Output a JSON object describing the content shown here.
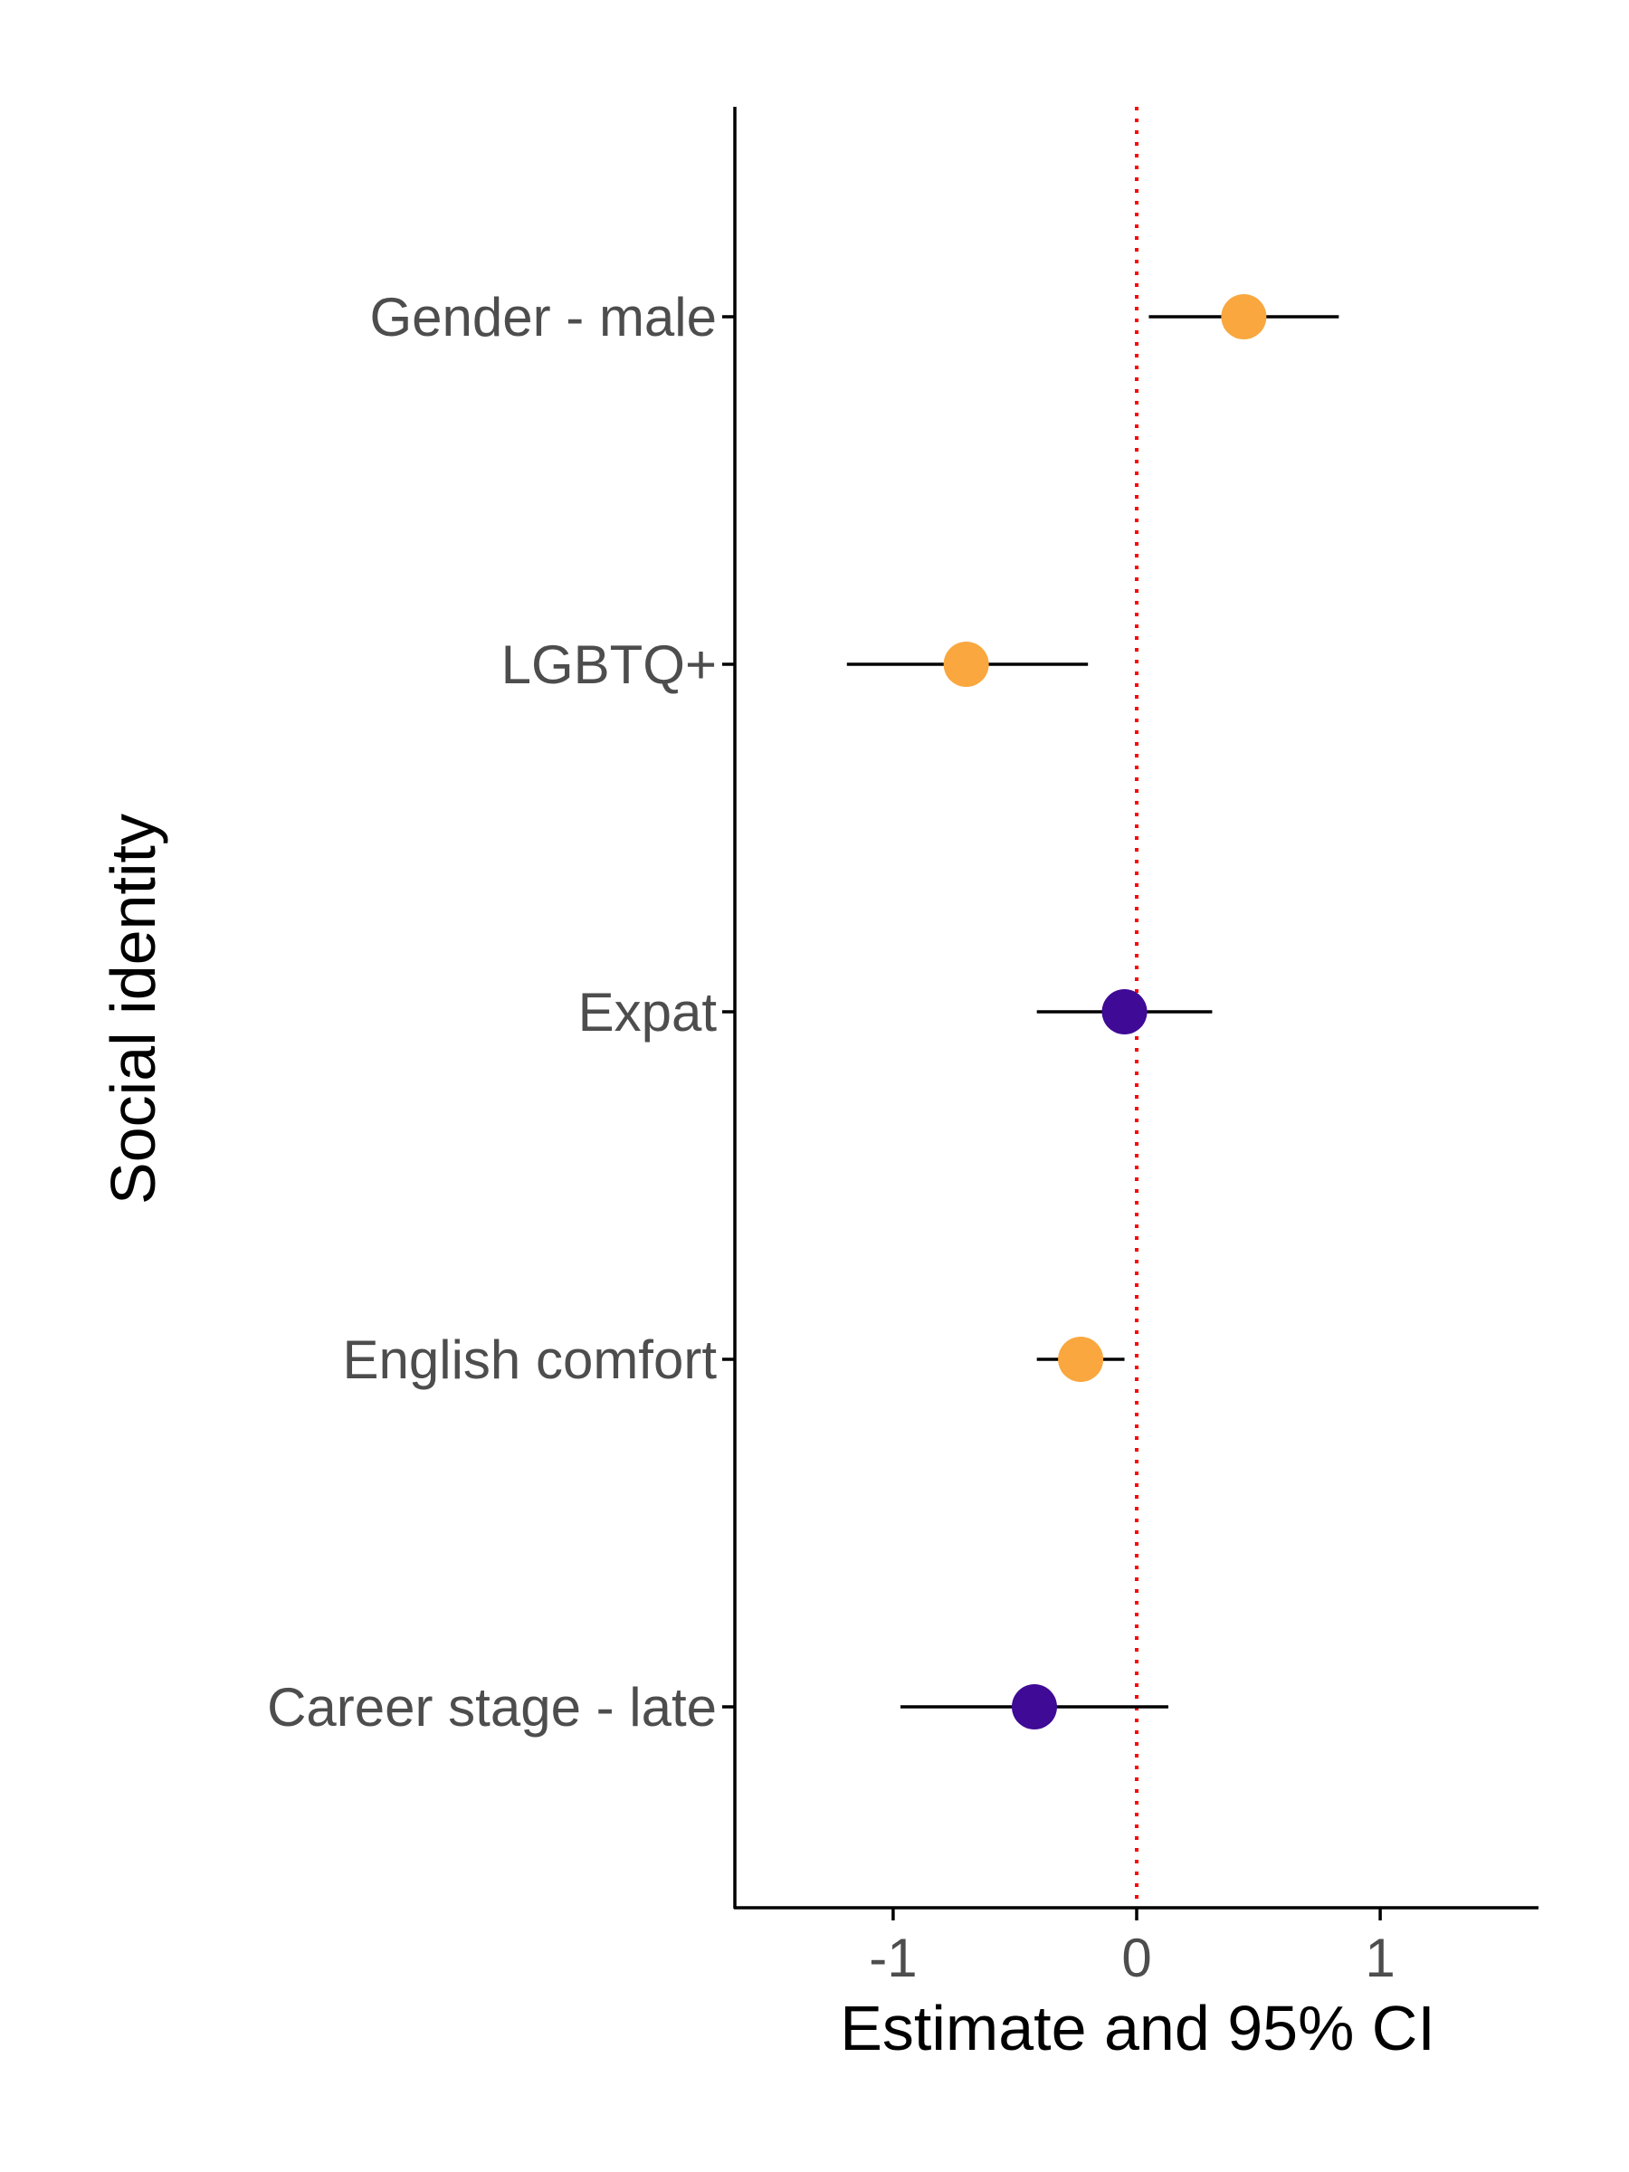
{
  "chart_data": {
    "type": "scatter",
    "xlabel": "Estimate and 95% CI",
    "ylabel": "Social identity",
    "xlim": [
      -1.65,
      1.65
    ],
    "x_ticks": [
      -1,
      0,
      1
    ],
    "x_tick_labels": [
      "-1",
      "0",
      "1"
    ],
    "reference_line": {
      "x": 0,
      "style": "dotted",
      "color": "#ff0000"
    },
    "grid": false,
    "colors": {
      "significant": "#f9a73e",
      "non_significant": "#3f0a96",
      "interval": "#000000",
      "axis": "#000000"
    },
    "categories": [
      "Gender - male",
      "LGBTQ+",
      "Expat",
      "English comfort",
      "Career stage - late"
    ],
    "points": [
      {
        "label": "Gender - male",
        "estimate": 0.44,
        "ci_low": 0.05,
        "ci_high": 0.83,
        "color": "#f9a73e"
      },
      {
        "label": "LGBTQ+",
        "estimate": -0.7,
        "ci_low": -1.19,
        "ci_high": -0.2,
        "color": "#f9a73e"
      },
      {
        "label": "Expat",
        "estimate": -0.05,
        "ci_low": -0.41,
        "ci_high": 0.31,
        "color": "#3f0a96"
      },
      {
        "label": "English comfort",
        "estimate": -0.23,
        "ci_low": -0.41,
        "ci_high": -0.05,
        "color": "#f9a73e"
      },
      {
        "label": "Career stage - late",
        "estimate": -0.42,
        "ci_low": -0.97,
        "ci_high": 0.13,
        "color": "#3f0a96"
      }
    ]
  }
}
